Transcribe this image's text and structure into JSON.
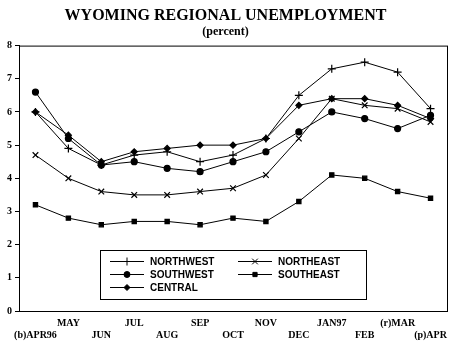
{
  "chart_data": {
    "type": "line",
    "title": "WYOMING REGIONAL UNEMPLOYMENT",
    "subtitle": "(percent)",
    "categories": [
      "(b)APR96",
      "MAY",
      "JUN",
      "JUL",
      "AUG",
      "SEP",
      "OCT",
      "NOV",
      "DEC",
      "JAN97",
      "FEB",
      "(r)MAR",
      "(p)APR"
    ],
    "series": [
      {
        "name": "NORTHWEST",
        "color": "#000000",
        "marker": "plus",
        "values": [
          6.0,
          4.9,
          4.4,
          4.7,
          4.8,
          4.5,
          4.7,
          5.2,
          6.5,
          7.3,
          7.5,
          7.2,
          6.1
        ]
      },
      {
        "name": "SOUTHWEST",
        "color": "#000000",
        "marker": "circle",
        "values": [
          6.6,
          5.2,
          4.4,
          4.5,
          4.3,
          4.2,
          4.5,
          4.8,
          5.4,
          6.0,
          5.8,
          5.5,
          5.9
        ]
      },
      {
        "name": "CENTRAL",
        "color": "#000000",
        "marker": "diamond",
        "values": [
          6.0,
          5.3,
          4.5,
          4.8,
          4.9,
          5.0,
          5.0,
          5.2,
          6.2,
          6.4,
          6.4,
          6.2,
          5.8
        ]
      },
      {
        "name": "NORTHEAST",
        "color": "#000000",
        "marker": "x",
        "values": [
          4.7,
          4.0,
          3.6,
          3.5,
          3.5,
          3.6,
          3.7,
          4.1,
          5.2,
          6.4,
          6.2,
          6.1,
          5.7
        ]
      },
      {
        "name": "SOUTHEAST",
        "color": "#000000",
        "marker": "square",
        "values": [
          3.2,
          2.8,
          2.6,
          2.7,
          2.7,
          2.6,
          2.8,
          2.7,
          3.3,
          4.1,
          4.0,
          3.6,
          3.4
        ]
      }
    ],
    "ylim": [
      0,
      8
    ],
    "yticks": [
      0,
      1,
      2,
      3,
      4,
      5,
      6,
      7,
      8
    ],
    "grid": false,
    "legend": "bottom"
  }
}
